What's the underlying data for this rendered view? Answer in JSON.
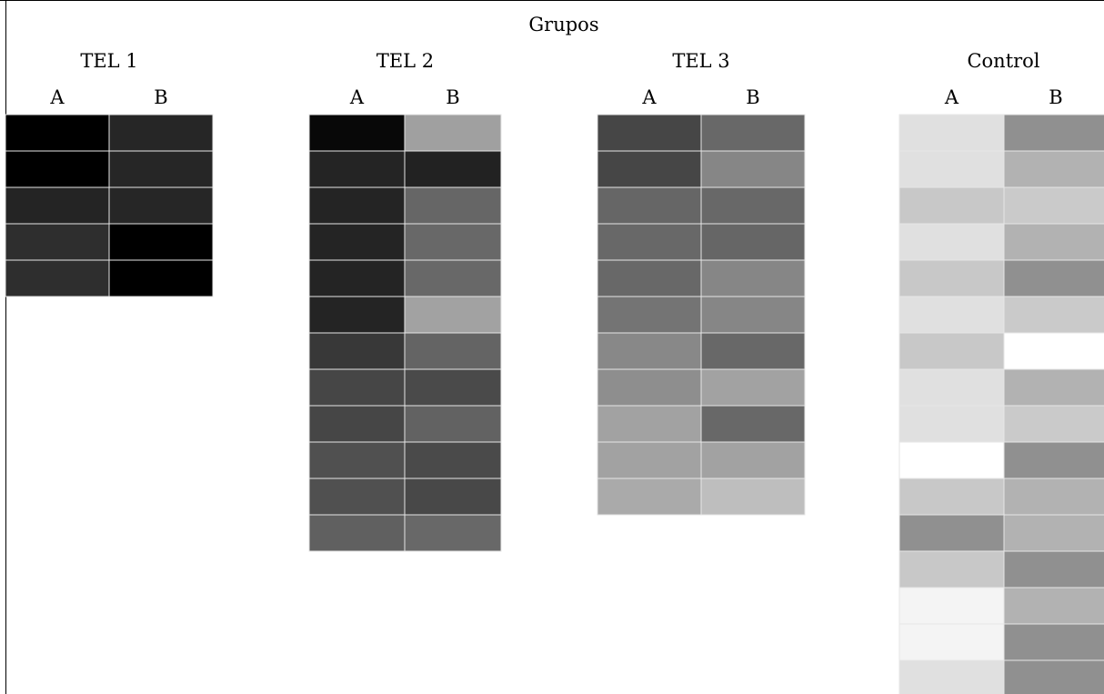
{
  "chart_data": {
    "type": "heatmap",
    "title": "Grupos",
    "column_labels": [
      "A",
      "B"
    ],
    "scale_note": "cell values are grayscale levels 0 (black) to 255 (white)",
    "groups": [
      {
        "name": "TEL 1",
        "rows": [
          [
            0,
            38
          ],
          [
            0,
            38
          ],
          [
            36,
            38
          ],
          [
            46,
            0
          ],
          [
            46,
            0
          ]
        ]
      },
      {
        "name": "TEL 2",
        "rows": [
          [
            8,
            160
          ],
          [
            36,
            34
          ],
          [
            36,
            102
          ],
          [
            36,
            104
          ],
          [
            36,
            104
          ],
          [
            36,
            162
          ],
          [
            56,
            100
          ],
          [
            70,
            74
          ],
          [
            70,
            98
          ],
          [
            80,
            74
          ],
          [
            80,
            72
          ],
          [
            96,
            104
          ]
        ]
      },
      {
        "name": "TEL 3",
        "rows": [
          [
            70,
            104
          ],
          [
            70,
            134
          ],
          [
            102,
            104
          ],
          [
            104,
            102
          ],
          [
            104,
            134
          ],
          [
            116,
            134
          ],
          [
            136,
            104
          ],
          [
            142,
            162
          ],
          [
            162,
            104
          ],
          [
            162,
            162
          ],
          [
            170,
            190
          ]
        ]
      },
      {
        "name": "Control",
        "rows": [
          [
            224,
            144
          ],
          [
            224,
            178
          ],
          [
            200,
            202
          ],
          [
            224,
            178
          ],
          [
            200,
            144
          ],
          [
            224,
            202
          ],
          [
            200,
            255
          ],
          [
            224,
            178
          ],
          [
            224,
            202
          ],
          [
            255,
            144
          ],
          [
            200,
            178
          ],
          [
            144,
            178
          ],
          [
            200,
            144
          ],
          [
            244,
            178
          ],
          [
            244,
            144
          ],
          [
            224,
            144
          ]
        ]
      }
    ]
  }
}
